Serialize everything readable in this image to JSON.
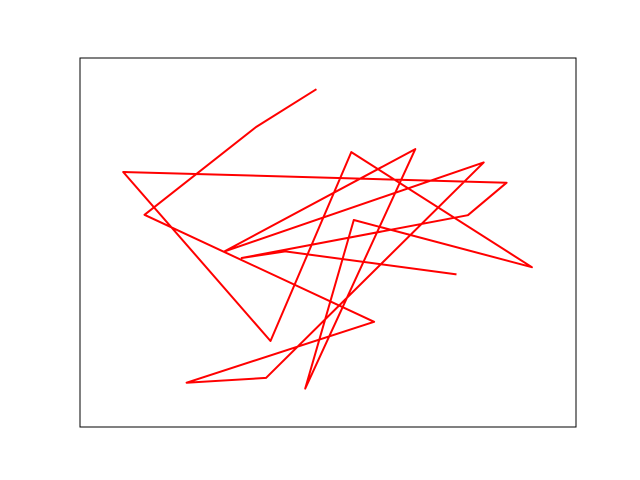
{
  "chart_data": {
    "type": "line",
    "title": "",
    "xlabel": "",
    "ylabel": "",
    "xlim": [
      0,
      1
    ],
    "ylim": [
      0,
      1
    ],
    "grid": false,
    "axis_ticks_visible": false,
    "series": [
      {
        "color": "#ff0000",
        "x": [
          0.475,
          0.355,
          0.13,
          0.593,
          0.215,
          0.375,
          0.814,
          0.29,
          0.676,
          0.454,
          0.552,
          0.911,
          0.547,
          0.384,
          0.087,
          0.86,
          0.782,
          0.326,
          0.414,
          0.757
        ],
        "y": [
          0.914,
          0.813,
          0.575,
          0.285,
          0.12,
          0.133,
          0.717,
          0.475,
          0.753,
          0.104,
          0.561,
          0.433,
          0.745,
          0.233,
          0.691,
          0.662,
          0.574,
          0.458,
          0.476,
          0.414
        ]
      }
    ]
  }
}
